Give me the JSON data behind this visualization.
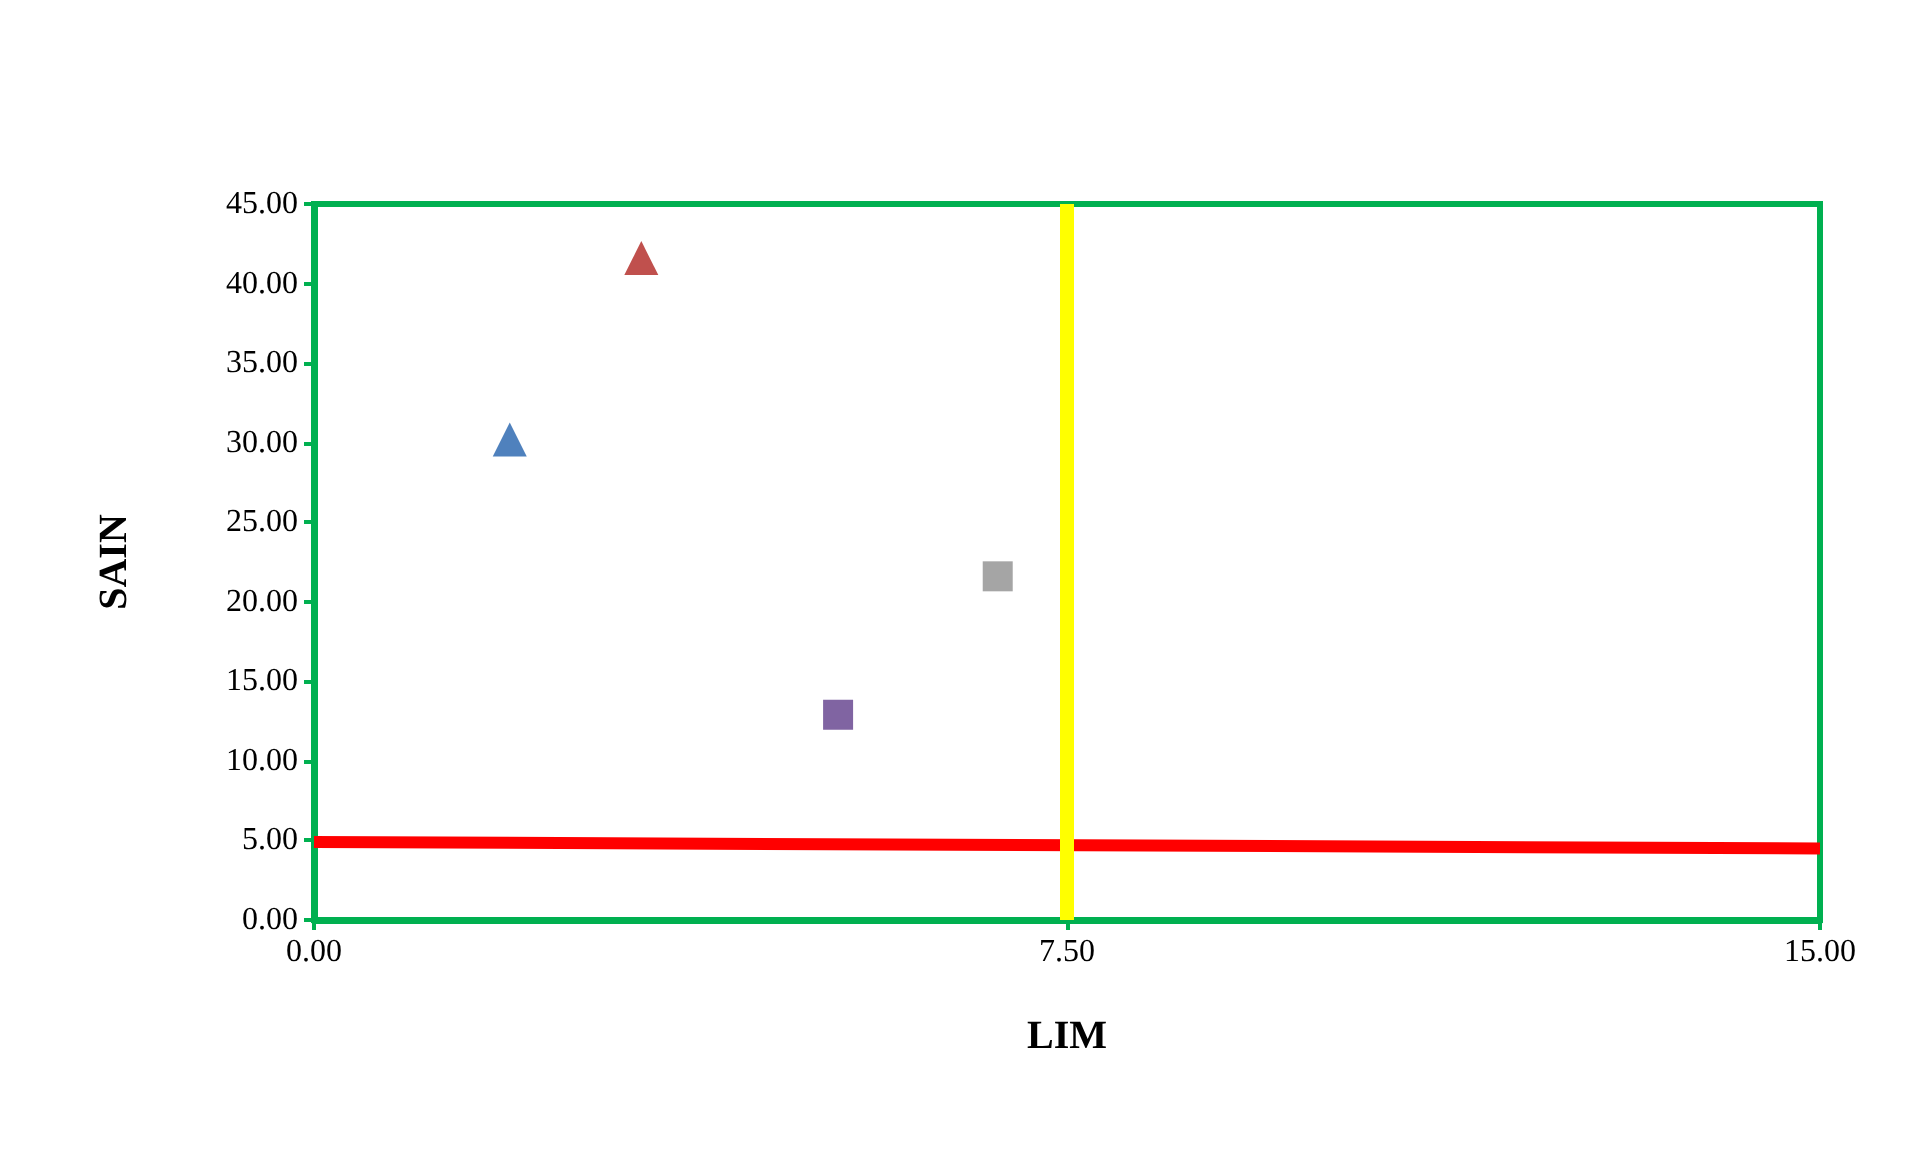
{
  "chart_data": {
    "type": "scatter",
    "xlabel": "LIM",
    "ylabel": "SAIN",
    "xlim": [
      0,
      15
    ],
    "xticks": [
      {
        "value": 0,
        "label": "0.00"
      },
      {
        "value": 7.5,
        "label": "7.50"
      },
      {
        "value": 15,
        "label": "15.00"
      }
    ],
    "ylim": [
      0,
      45
    ],
    "yticks": [
      {
        "value": 0,
        "label": "0.00"
      },
      {
        "value": 5,
        "label": "5.00"
      },
      {
        "value": 10,
        "label": "10.00"
      },
      {
        "value": 15,
        "label": "15.00"
      },
      {
        "value": 20,
        "label": "20.00"
      },
      {
        "value": 25,
        "label": "25.00"
      },
      {
        "value": 30,
        "label": "30.00"
      },
      {
        "value": 35,
        "label": "35.00"
      },
      {
        "value": 40,
        "label": "40.00"
      },
      {
        "value": 45,
        "label": "45.00"
      }
    ],
    "grid": false,
    "series": [
      {
        "color": "#4f81bd",
        "marker": "triangle",
        "x": [
          1.95
        ],
        "values": [
          30.2
        ]
      },
      {
        "color": "#c0504d",
        "marker": "triangle",
        "x": [
          3.26
        ],
        "values": [
          41.6
        ]
      },
      {
        "color": "#8064a2",
        "marker": "square",
        "x": [
          5.22
        ],
        "values": [
          12.9
        ]
      },
      {
        "color": "#a5a5a5",
        "marker": "square",
        "x": [
          6.81
        ],
        "values": [
          21.6
        ]
      },
      {
        "type": "line",
        "color": "#ff0000",
        "marker": "none",
        "x": [
          0,
          15
        ],
        "values": [
          4.9,
          4.5
        ]
      }
    ],
    "ref_lines": [
      {
        "axis": "x",
        "value": 7.5,
        "color": "#ffff00"
      }
    ]
  }
}
